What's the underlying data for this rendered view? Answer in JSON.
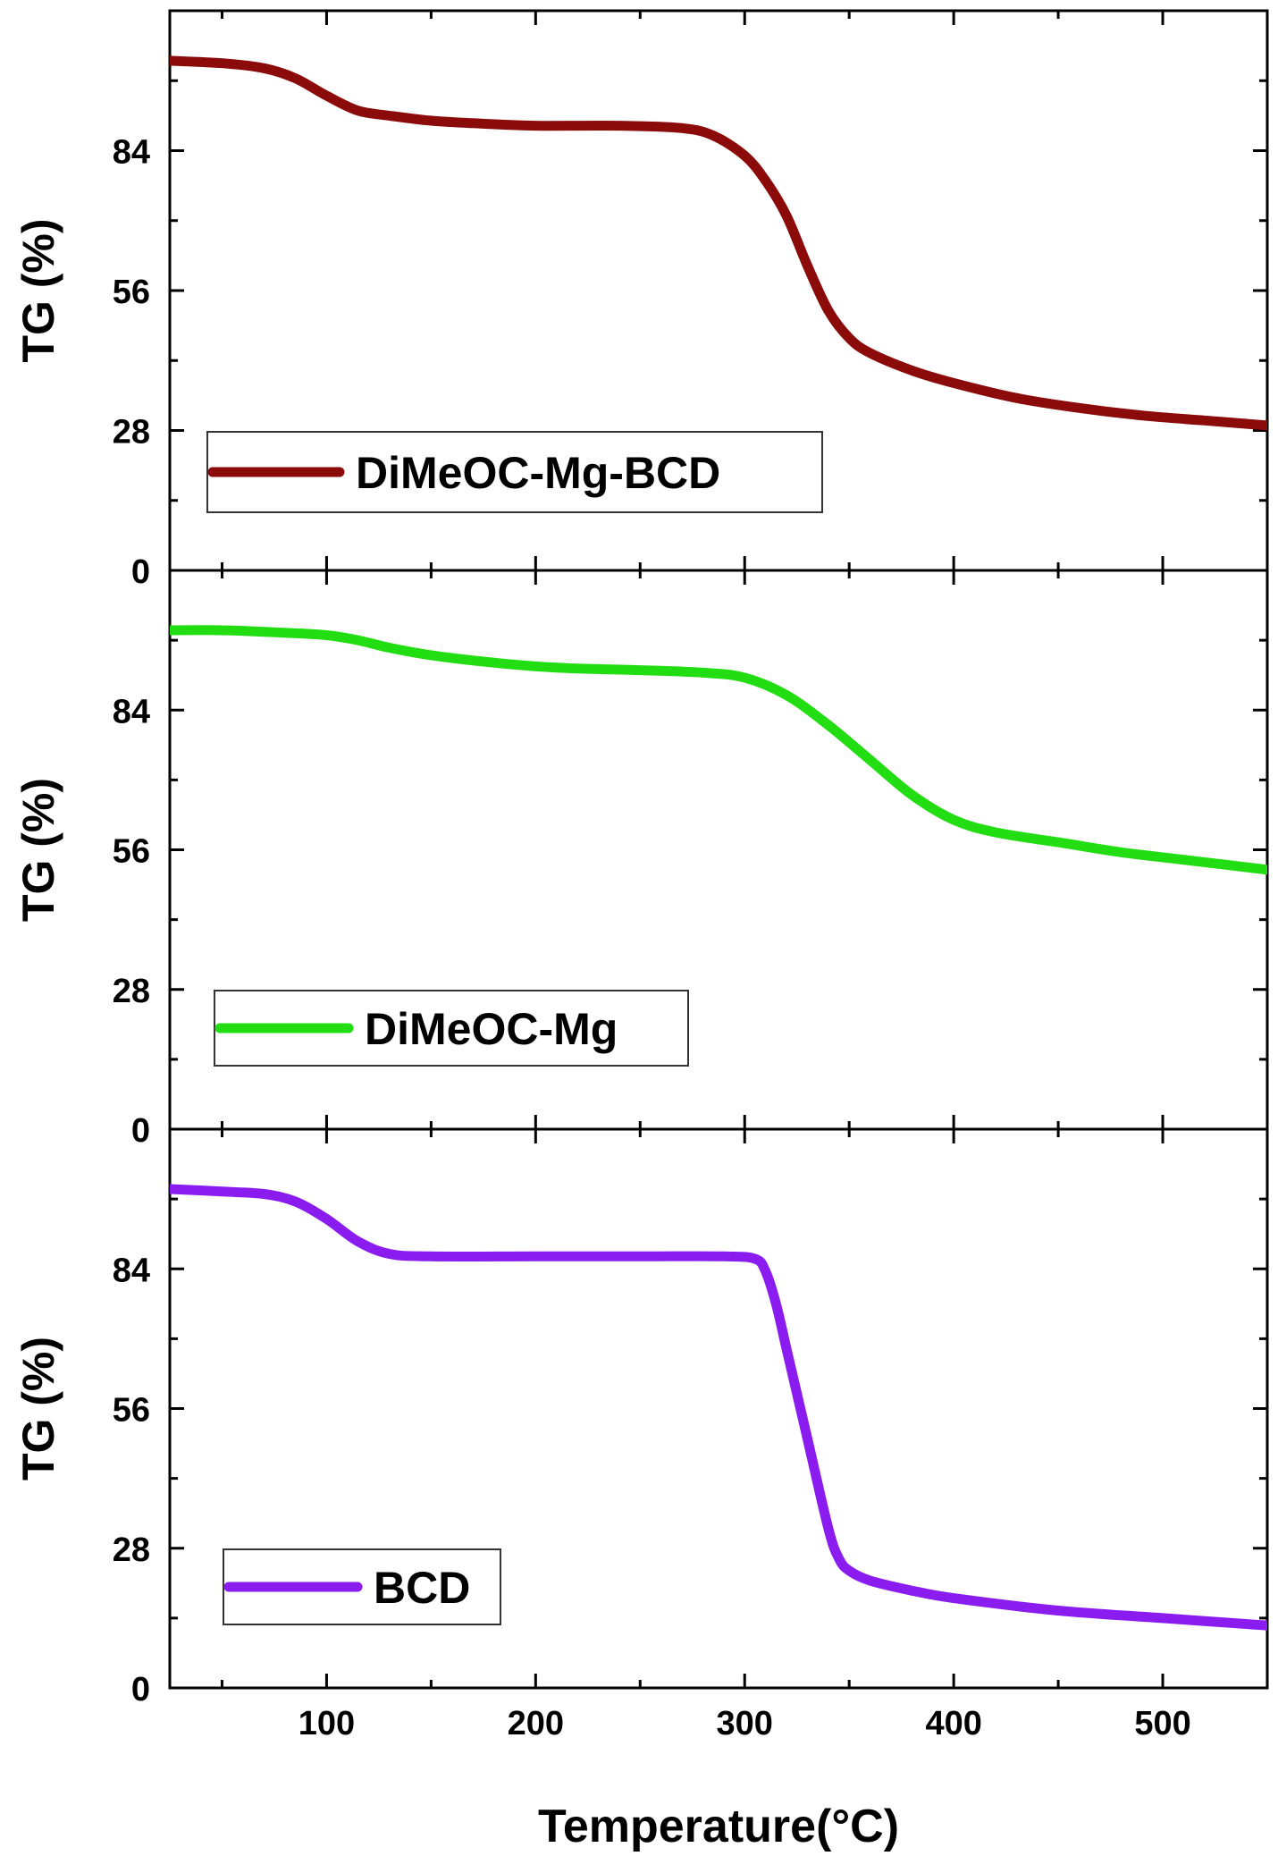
{
  "chart_data": {
    "type": "line",
    "layout": "three vertically stacked panels sharing x axis",
    "xlabel": "Temperature(°C)",
    "xlim": [
      25,
      550
    ],
    "xticks": [
      100,
      200,
      300,
      400,
      500
    ],
    "x_tick_labels": [
      "100",
      "200",
      "300",
      "400",
      "500"
    ],
    "panels": [
      {
        "ylabel": "TG (%)",
        "ylim": [
          0,
          112
        ],
        "yticks": [
          0,
          28,
          56,
          84
        ],
        "y_tick_labels": [
          "0",
          "28",
          "56",
          "84"
        ],
        "legend_position": "bottom-left",
        "series": [
          {
            "name": "DiMeOC-Mg-BCD",
            "color": "#8b0a0a",
            "x": [
              25,
              50,
              70,
              85,
              100,
              115,
              130,
              150,
              170,
              200,
              240,
              270,
              285,
              300,
              310,
              320,
              330,
              340,
              350,
              360,
              380,
              400,
              430,
              460,
              490,
              520,
              550
            ],
            "y": [
              102,
              101.5,
              100.5,
              98.5,
              95,
              92,
              91,
              90,
              89.5,
              89,
              89,
              88.5,
              87,
              83,
              78,
              71,
              61,
              52,
              46.5,
              43.5,
              40,
              37.5,
              34.5,
              32.5,
              31,
              30,
              29
            ]
          }
        ]
      },
      {
        "ylabel": "TG (%)",
        "ylim": [
          0,
          112
        ],
        "yticks": [
          0,
          28,
          56,
          84
        ],
        "y_tick_labels": [
          "0",
          "28",
          "56",
          "84"
        ],
        "legend_position": "bottom-left",
        "series": [
          {
            "name": "DiMeOC-Mg",
            "color": "#22dd11",
            "x": [
              25,
              50,
              80,
              100,
              115,
              130,
              150,
              180,
              210,
              250,
              280,
              300,
              320,
              340,
              360,
              380,
              400,
              420,
              450,
              480,
              510,
              550
            ],
            "y": [
              100,
              100,
              99.5,
              99,
              98,
              96.5,
              95,
              93.5,
              92.5,
              92,
              91.5,
              90.5,
              87,
              81,
              74,
              67,
              62,
              59.5,
              57.5,
              55.5,
              54,
              52
            ]
          }
        ]
      },
      {
        "ylabel": "TG (%)",
        "ylim": [
          0,
          112
        ],
        "yticks": [
          0,
          28,
          56,
          84
        ],
        "y_tick_labels": [
          "0",
          "28",
          "56",
          "84"
        ],
        "legend_position": "bottom-left",
        "series": [
          {
            "name": "BCD",
            "color": "#8a1cf0",
            "x": [
              25,
              50,
              70,
              85,
              100,
              115,
              130,
              150,
              200,
              250,
              290,
              305,
              310,
              315,
              320,
              330,
              340,
              345,
              350,
              360,
              380,
              400,
              450,
              500,
              550
            ],
            "y": [
              100,
              99.5,
              99,
              97.5,
              94,
              89.5,
              87,
              86.5,
              86.5,
              86.5,
              86.5,
              86,
              83.5,
              77,
              68,
              50,
              32,
              26,
              23.5,
              21.5,
              19.5,
              18,
              15.5,
              14,
              12.5
            ]
          }
        ]
      }
    ]
  }
}
